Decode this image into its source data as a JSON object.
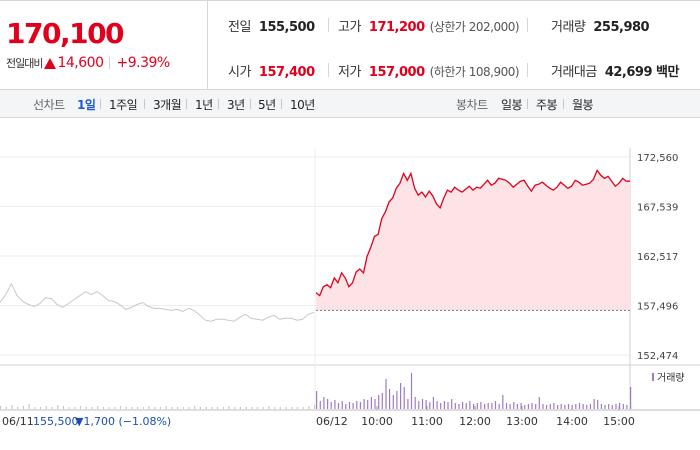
{
  "quote": {
    "price": "170,100",
    "change_label": "전일대비",
    "change_value": "14,600",
    "change_pct": "+9.39%"
  },
  "stats": {
    "prev": {
      "label": "전일",
      "value": "155,500"
    },
    "high": {
      "label": "고가",
      "value": "171,200",
      "note": "(상한가 202,000)"
    },
    "volume": {
      "label": "거래량",
      "value": "255,980"
    },
    "open": {
      "label": "시가",
      "value": "157,400"
    },
    "low": {
      "label": "저가",
      "value": "157,000",
      "note": "(하한가 108,900)"
    },
    "amount": {
      "label": "거래대금",
      "value": "42,699 백만"
    }
  },
  "line_tabs": {
    "title": "선차트",
    "items": [
      "1일",
      "1주일",
      "3개월",
      "1년",
      "3년",
      "5년",
      "10년"
    ],
    "active": "1일"
  },
  "candle_tabs": {
    "title": "봉차트",
    "items": [
      "일봉",
      "주봉",
      "월봉"
    ]
  },
  "colors": {
    "up": "#e0001c",
    "down": "#1d5bd8",
    "prev_line": "#c8c8c8",
    "fill": "#fde3e5",
    "volume_prev": "#c8c8c8",
    "volume_today": "#9e7ac4"
  },
  "chart_data": {
    "type": "line",
    "y_ticks": [
      "172,560",
      "167,539",
      "162,517",
      "157,496",
      "152,474"
    ],
    "ylim": [
      152474,
      172560
    ],
    "prev_day": {
      "date": "06/11",
      "close": 155500,
      "close_text": "155,500",
      "change_text": "▼1,700 (−1.08%)",
      "values": [
        157800,
        158600,
        159700,
        158500,
        157900,
        157600,
        157400,
        157700,
        158300,
        158200,
        157600,
        157300,
        157700,
        158100,
        158500,
        158900,
        158600,
        158900,
        158500,
        158000,
        157900,
        157600,
        157100,
        157300,
        157600,
        157800,
        157400,
        157200,
        157200,
        157100,
        157000,
        157100,
        156900,
        157200,
        157000,
        156500,
        156000,
        155900,
        156100,
        156100,
        156000,
        155900,
        156300,
        156600,
        156200,
        156100,
        156000,
        156300,
        156500,
        156100,
        156200,
        156200,
        156000,
        156100,
        156600,
        156800
      ]
    },
    "today": {
      "date": "06/12",
      "x_labels": [
        "10:00",
        "11:00",
        "12:00",
        "13:00",
        "14:00",
        "15:00"
      ],
      "values": [
        158800,
        158500,
        159400,
        159600,
        159300,
        160300,
        159800,
        160800,
        160300,
        159400,
        159800,
        160900,
        161200,
        160800,
        162500,
        163400,
        164500,
        164700,
        166300,
        167000,
        168000,
        168400,
        169400,
        169900,
        170900,
        170200,
        170900,
        169400,
        168700,
        169000,
        168500,
        169100,
        168600,
        167800,
        167400,
        168400,
        169200,
        169000,
        169500,
        169200,
        169000,
        169300,
        169600,
        169200,
        169500,
        169400,
        169800,
        170200,
        169700,
        169900,
        170400,
        170300,
        170200,
        169900,
        169500,
        169800,
        170100,
        170200,
        169600,
        169100,
        169700,
        169800,
        170000,
        169700,
        169400,
        169200,
        169500,
        170000,
        169700,
        169400,
        169600,
        170200,
        170000,
        169700,
        169800,
        169900,
        170300,
        171200,
        170700,
        170400,
        170600,
        170100,
        169600,
        169900,
        170400,
        170100,
        170100
      ]
    },
    "volume": {
      "legend": "거래량",
      "prev_day": [
        3,
        2,
        4,
        2,
        3,
        5,
        2,
        2,
        3,
        2,
        4,
        3,
        2,
        2,
        3,
        2,
        2,
        3,
        2,
        2,
        2,
        3,
        2,
        2,
        2,
        2,
        3,
        2,
        2,
        3,
        2,
        2,
        2,
        2,
        3,
        2,
        2,
        2,
        2,
        2,
        3,
        2,
        2,
        2,
        2,
        2,
        2,
        3,
        2,
        2,
        2,
        2,
        2,
        2,
        3,
        4
      ],
      "today": [
        18,
        8,
        12,
        10,
        7,
        9,
        6,
        8,
        5,
        7,
        6,
        8,
        7,
        10,
        9,
        12,
        10,
        14,
        16,
        30,
        20,
        14,
        18,
        26,
        22,
        10,
        36,
        12,
        8,
        10,
        9,
        7,
        12,
        8,
        6,
        8,
        7,
        10,
        6,
        5,
        7,
        6,
        8,
        5,
        6,
        7,
        5,
        6,
        6,
        8,
        5,
        14,
        6,
        5,
        7,
        5,
        6,
        4,
        5,
        6,
        5,
        12,
        5,
        4,
        5,
        6,
        4,
        5,
        4,
        5,
        4,
        5,
        6,
        5,
        4,
        5,
        10,
        9,
        5,
        4,
        5,
        4,
        5,
        6,
        5,
        4,
        22
      ]
    }
  }
}
